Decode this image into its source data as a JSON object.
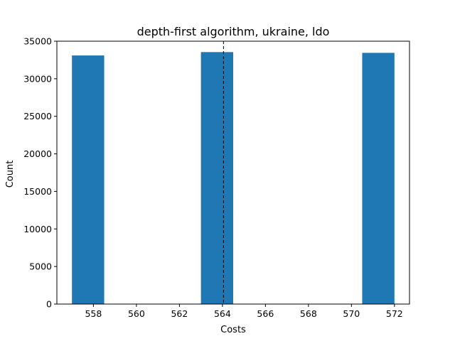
{
  "chart_data": {
    "type": "bar",
    "title": "depth-first algorithm, ukraine, ldo",
    "xlabel": "Costs",
    "ylabel": "Count",
    "xlim": [
      556.3,
      572.7
    ],
    "ylim": [
      0,
      35000
    ],
    "xticks": [
      558,
      560,
      562,
      564,
      566,
      568,
      570,
      572
    ],
    "yticks": [
      0,
      5000,
      10000,
      15000,
      20000,
      25000,
      30000,
      35000
    ],
    "bins": [
      {
        "x0": 557.0,
        "x1": 558.5,
        "value": 33100
      },
      {
        "x0": 563.0,
        "x1": 564.5,
        "value": 33550
      },
      {
        "x0": 570.5,
        "x1": 572.0,
        "value": 33450
      }
    ],
    "reference_line": {
      "x": 564.05,
      "style": "dashed"
    },
    "bar_color": "#1f77b4",
    "grid": false
  }
}
